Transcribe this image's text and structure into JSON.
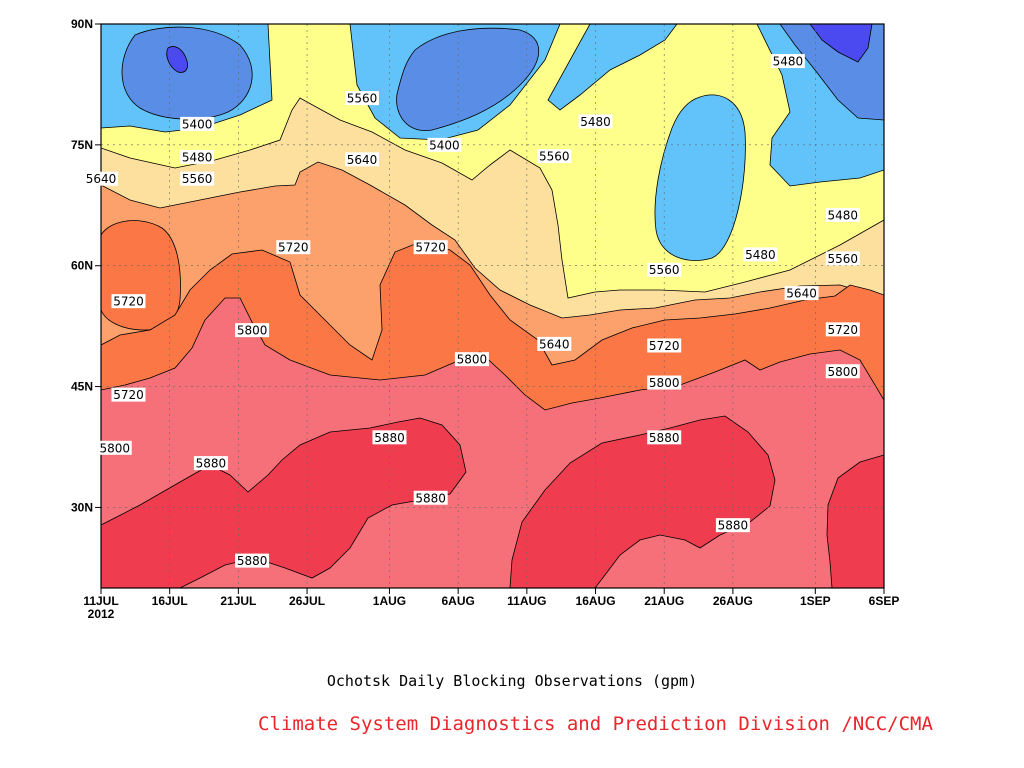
{
  "caption": "Ochotsk Daily Blocking Observations (gpm)",
  "credit": "Climate System Diagnostics and Prediction Division /NCC/CMA",
  "chart_data": {
    "type": "heatmap",
    "title": "Ochotsk Daily Blocking Observations (gpm)",
    "x_ticks": [
      "11JUL\n2012",
      "16JUL",
      "21JUL",
      "26JUL",
      "1AUG",
      "6AUG",
      "11AUG",
      "16AUG",
      "21AUG",
      "26AUG",
      "1SEP",
      "6SEP"
    ],
    "x_range": [
      "2012-07-11",
      "2012-09-06"
    ],
    "y_ticks": [
      "30N",
      "45N",
      "60N",
      "75N",
      "90N"
    ],
    "y_range": [
      20,
      90
    ],
    "grid": true,
    "contour_levels": [
      5400,
      5480,
      5560,
      5640,
      5720,
      5800,
      5880
    ],
    "level_colors": {
      "below_5400": "#4a4af0",
      "5400": "#5a8ee6",
      "5480": "#62c3fa",
      "5560": "#fefe8a",
      "5640": "#fddf9e",
      "5720": "#fca06c",
      "5800": "#fb7846",
      "5880": "#f57078",
      "above_5880": "#ef3c4e"
    },
    "contour_labels": [
      {
        "value": "5400",
        "date": "2012-07-18",
        "lat": 77.6
      },
      {
        "value": "5480",
        "date": "2012-07-18",
        "lat": 73.5
      },
      {
        "value": "5560",
        "date": "2012-07-18",
        "lat": 70.8
      },
      {
        "value": "5640",
        "date": "2012-07-11",
        "lat": 70.8
      },
      {
        "value": "5560",
        "date": "2012-07-30",
        "lat": 80.8
      },
      {
        "value": "5640",
        "date": "2012-07-30",
        "lat": 73.2
      },
      {
        "value": "5720",
        "date": "2012-07-25",
        "lat": 62.3
      },
      {
        "value": "5720",
        "date": "2012-08-04",
        "lat": 62.3
      },
      {
        "value": "5400",
        "date": "2012-08-05",
        "lat": 75.0
      },
      {
        "value": "5560",
        "date": "2012-08-13",
        "lat": 73.6
      },
      {
        "value": "5480",
        "date": "2012-08-16",
        "lat": 77.9
      },
      {
        "value": "5480",
        "date": "2012-08-30",
        "lat": 85.4
      },
      {
        "value": "5480",
        "date": "2012-08-28",
        "lat": 61.4
      },
      {
        "value": "5480",
        "date": "2012-09-03",
        "lat": 66.3
      },
      {
        "value": "5560",
        "date": "2012-09-03",
        "lat": 60.9
      },
      {
        "value": "5640",
        "date": "2012-08-31",
        "lat": 56.6
      },
      {
        "value": "5560",
        "date": "2012-08-21",
        "lat": 59.5
      },
      {
        "value": "5720",
        "date": "2012-09-03",
        "lat": 52.1
      },
      {
        "value": "5720",
        "date": "2012-08-21",
        "lat": 50.1
      },
      {
        "value": "5640",
        "date": "2012-08-13",
        "lat": 50.3
      },
      {
        "value": "5800",
        "date": "2012-08-07",
        "lat": 48.4
      },
      {
        "value": "5800",
        "date": "2012-08-21",
        "lat": 45.5
      },
      {
        "value": "5800",
        "date": "2012-09-03",
        "lat": 46.9
      },
      {
        "value": "5720",
        "date": "2012-07-13",
        "lat": 55.6
      },
      {
        "value": "5800",
        "date": "2012-07-22",
        "lat": 52.0
      },
      {
        "value": "5720",
        "date": "2012-07-13",
        "lat": 44.0
      },
      {
        "value": "5800",
        "date": "2012-07-12",
        "lat": 37.4
      },
      {
        "value": "5880",
        "date": "2012-07-19",
        "lat": 35.5
      },
      {
        "value": "5880",
        "date": "2012-08-01",
        "lat": 38.7
      },
      {
        "value": "5880",
        "date": "2012-08-04",
        "lat": 31.2
      },
      {
        "value": "5880",
        "date": "2012-07-22",
        "lat": 23.4
      },
      {
        "value": "5880",
        "date": "2012-08-21",
        "lat": 38.7
      },
      {
        "value": "5880",
        "date": "2012-08-26",
        "lat": 27.8
      }
    ]
  }
}
